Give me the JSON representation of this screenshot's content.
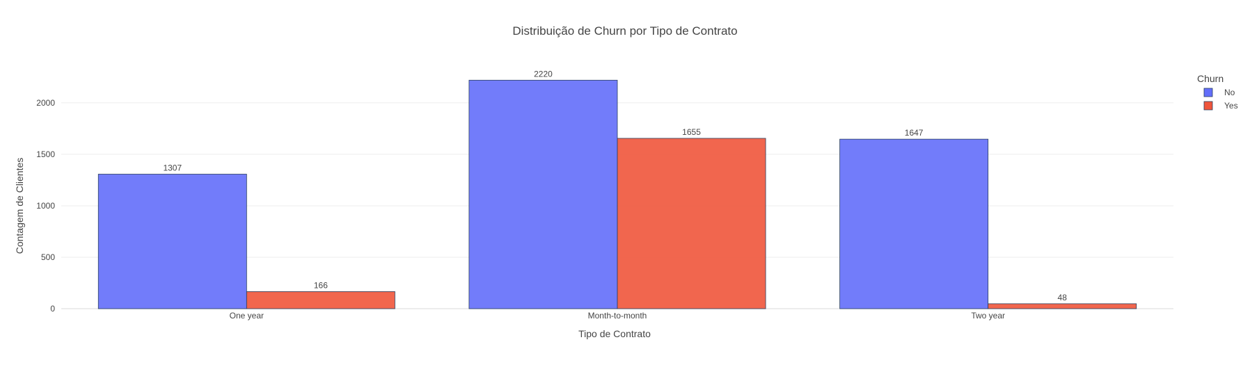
{
  "chart_data": {
    "type": "bar",
    "title": "Distribuição de Churn por Tipo de Contrato",
    "xlabel": "Tipo de Contrato",
    "ylabel": "Contagem de Clientes",
    "categories": [
      "One year",
      "Month-to-month",
      "Two year"
    ],
    "series": [
      {
        "name": "No",
        "values": [
          1307,
          2220,
          1647
        ],
        "color": "#636efa"
      },
      {
        "name": "Yes",
        "values": [
          166,
          1655,
          48
        ],
        "color": "#ef553b"
      }
    ],
    "ylim": [
      0,
      2337
    ],
    "yticks": [
      0,
      500,
      1000,
      1500,
      2000
    ],
    "legend": {
      "title": "Churn",
      "placement": "top-right"
    },
    "grid": true
  }
}
